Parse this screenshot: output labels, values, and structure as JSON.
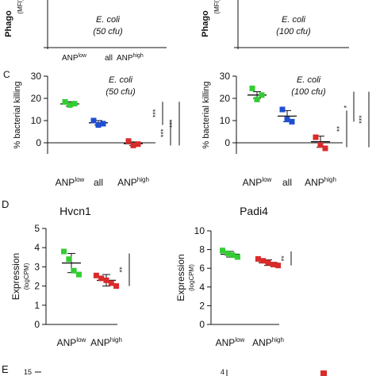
{
  "colors": {
    "low": "#33cc33",
    "all": "#1f4fd1",
    "high": "#d92b2b",
    "line": "#111111"
  },
  "panel_labels": {
    "c": "C",
    "d": "D",
    "e": "E"
  },
  "top_panels": {
    "ylabel_main": "Phago",
    "ylabel_unit": "(MFI)",
    "left_annot": [
      "E. coli",
      "(50 cfu)"
    ],
    "right_annot": [
      "E. coli",
      "(100 cfu)"
    ],
    "x_labels": [
      {
        "base": "ANP",
        "sup": "low"
      },
      {
        "base": "all",
        "sup": ""
      },
      {
        "base": "ANP",
        "sup": "high"
      }
    ]
  },
  "bottom_fragment": {
    "left_tick": "15",
    "right_tick": "4"
  },
  "chart_data": [
    {
      "id": "C-left",
      "type": "scatter",
      "ylabel": "% bacterial killing",
      "annotation": [
        "E. coli",
        "(50 cfu)"
      ],
      "categories": [
        {
          "base": "ANP",
          "sup": "low"
        },
        {
          "base": "all",
          "sup": ""
        },
        {
          "base": "ANP",
          "sup": "high"
        }
      ],
      "yticks": [
        "0",
        "10",
        "20",
        "30"
      ],
      "ylim": [
        -5,
        30
      ],
      "series": [
        {
          "category": 0,
          "color": "low",
          "mean": 17.5,
          "err": 1.0,
          "points": [
            18.4,
            17.0,
            17.6
          ]
        },
        {
          "category": 1,
          "color": "all",
          "mean": 9.0,
          "err": 1.0,
          "points": [
            10.0,
            8.0,
            8.6
          ]
        },
        {
          "category": 2,
          "color": "high",
          "mean": -0.4,
          "err": 0.8,
          "points": [
            0.8,
            -1.2,
            -0.6
          ]
        }
      ],
      "significance": [
        "***",
        "***",
        "***"
      ]
    },
    {
      "id": "C-right",
      "type": "scatter",
      "ylabel": "% bacterial killing",
      "annotation": [
        "E. coli",
        "(100 cfu)"
      ],
      "categories": [
        {
          "base": "ANP",
          "sup": "low"
        },
        {
          "base": "all",
          "sup": ""
        },
        {
          "base": "ANP",
          "sup": "high"
        }
      ],
      "yticks": [
        "0",
        "10",
        "20",
        "30"
      ],
      "ylim": [
        -5,
        30
      ],
      "series": [
        {
          "category": 0,
          "color": "low",
          "mean": 21.5,
          "err": 1.5,
          "points": [
            24.5,
            19.5,
            21.5
          ]
        },
        {
          "category": 1,
          "color": "all",
          "mean": 12.0,
          "err": 2.5,
          "points": [
            15.0,
            10.5,
            9.5
          ]
        },
        {
          "category": 2,
          "color": "high",
          "mean": 0.5,
          "err": 2.5,
          "points": [
            2.5,
            -1.0,
            -2.5
          ]
        }
      ],
      "significance": [
        "*",
        "**",
        "***"
      ]
    },
    {
      "id": "D-left",
      "type": "scatter",
      "title": "Hvcn1",
      "ylabel": "Expression",
      "ylabel_unit": "(logCPM)",
      "categories": [
        {
          "base": "ANP",
          "sup": "low"
        },
        {
          "base": "ANP",
          "sup": "high"
        }
      ],
      "yticks": [
        "0",
        "1",
        "2",
        "3",
        "4",
        "5"
      ],
      "ylim": [
        0,
        5
      ],
      "series": [
        {
          "category": 0,
          "color": "low",
          "mean": 3.2,
          "err": 0.5,
          "points": [
            3.8,
            3.4,
            2.8,
            2.6
          ]
        },
        {
          "category": 1,
          "color": "high",
          "mean": 2.3,
          "err": 0.3,
          "points": [
            2.55,
            2.4,
            2.3,
            2.15,
            2.0
          ]
        }
      ],
      "significance": [
        "**"
      ]
    },
    {
      "id": "D-right",
      "type": "scatter",
      "title": "Padi4",
      "ylabel": "Expression",
      "ylabel_unit": "(logCPM)",
      "categories": [
        {
          "base": "ANP",
          "sup": "low"
        },
        {
          "base": "ANP",
          "sup": "high"
        }
      ],
      "yticks": [
        "0",
        "2",
        "4",
        "6",
        "8",
        "10"
      ],
      "ylim": [
        0,
        10
      ],
      "series": [
        {
          "category": 0,
          "color": "low",
          "mean": 7.5,
          "err": 0.3,
          "points": [
            7.9,
            7.6,
            7.4,
            7.2
          ]
        },
        {
          "category": 1,
          "color": "high",
          "mean": 6.6,
          "err": 0.3,
          "points": [
            7.0,
            6.8,
            6.6,
            6.4,
            6.3
          ]
        }
      ],
      "significance": [
        "**"
      ]
    }
  ]
}
